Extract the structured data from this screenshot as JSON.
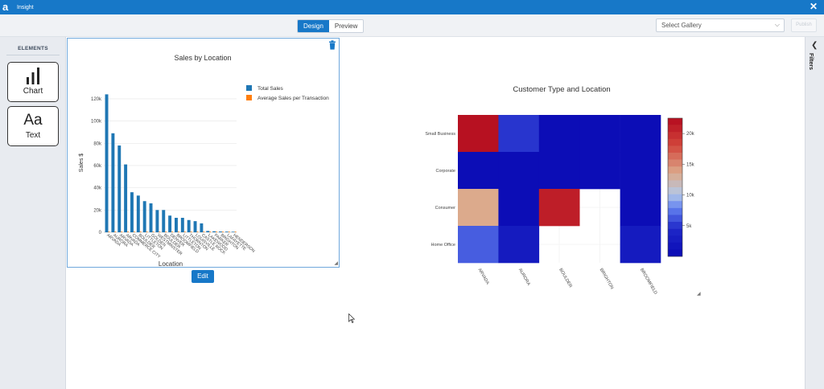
{
  "app": {
    "logo": "a",
    "title": "Insight",
    "close_icon": "close-icon"
  },
  "toolbar": {
    "design_label": "Design",
    "preview_label": "Preview",
    "gallery_placeholder": "Select Gallery",
    "publish_label": "Publish"
  },
  "sidebar": {
    "heading": "ELEMENTS",
    "chart_label": "Chart",
    "text_glyph": "Aa",
    "text_label": "Text"
  },
  "filters_label": "Filters",
  "edit_label": "Edit",
  "chart_data": [
    {
      "type": "bar",
      "title": "Sales by Location",
      "xlabel": "Location",
      "ylabel": "Sales $",
      "ylim": [
        0,
        125000
      ],
      "yticks": [
        "0",
        "20k",
        "40k",
        "60k",
        "80k",
        "100k",
        "120k"
      ],
      "categories": [
        "ARVADA",
        "AURORA",
        "ARVADA",
        "ARVADA",
        "COMMERCE CITY",
        "BOULDER",
        "LITTLETON",
        "GOLDEN",
        "WESTMINSTER",
        "BOULDER",
        "DENVER",
        "BROOMFIELD",
        "LITTLETON",
        "THORNTON",
        "LOUISVILLE",
        "CASTLE ROCK",
        "LAKEWOOD",
        "PARKER",
        "BRIGHTON",
        "LAFAYETTE",
        "HENDERSON"
      ],
      "series": [
        {
          "name": "Total Sales",
          "color": "#1f77b4",
          "values": [
            124000,
            89000,
            78000,
            61000,
            36000,
            33000,
            28000,
            26000,
            20000,
            20000,
            15000,
            13000,
            13000,
            11000,
            10000,
            8000,
            1200,
            900,
            700,
            600,
            500
          ]
        },
        {
          "name": "Average Sales per Transaction",
          "color": "#ff7f0e",
          "values": [
            300,
            300,
            300,
            300,
            300,
            300,
            300,
            300,
            300,
            300,
            300,
            300,
            300,
            300,
            300,
            300,
            300,
            300,
            300,
            300,
            300
          ]
        }
      ],
      "grid": true,
      "legend": "top-right"
    },
    {
      "type": "heatmap",
      "title": "Customer Type and Location",
      "x": [
        "ARVADA",
        "AURORA",
        "BOULDER",
        "BRIGHTON",
        "BROOMFIELD"
      ],
      "y": [
        "Small Business",
        "Corporate",
        "Consumer",
        "Home Office"
      ],
      "z": [
        [
          22000,
          5000,
          500,
          500,
          500
        ],
        [
          500,
          500,
          500,
          500,
          500
        ],
        [
          13500,
          500,
          21000,
          null,
          500
        ],
        [
          6500,
          2500,
          null,
          null,
          2500
        ]
      ],
      "colorbar_ticks": [
        "5k",
        "10k",
        "15k",
        "20k"
      ],
      "zrange": [
        0,
        22500
      ]
    }
  ]
}
